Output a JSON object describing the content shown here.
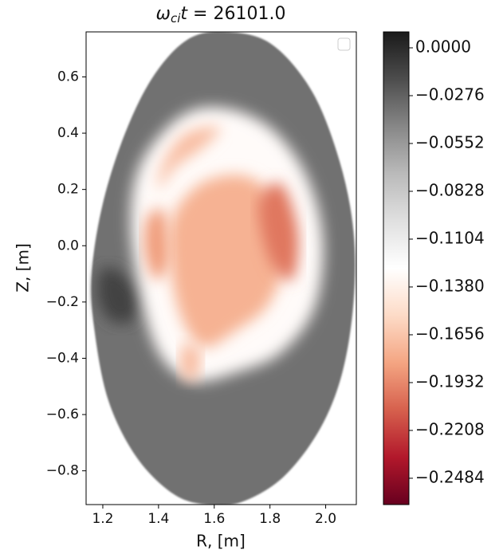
{
  "chart_data": {
    "type": "contour",
    "title": {
      "symbol": "ω",
      "subscript": "ci",
      "variable": "t",
      "rest": " = 26101.0"
    },
    "xlabel": "R, [m]",
    "ylabel": "Z, [m]",
    "xlim": [
      1.14,
      2.11
    ],
    "ylim": [
      -0.92,
      0.76
    ],
    "xticks": [
      1.2,
      1.4,
      1.6,
      1.8,
      {
        "value": 2,
        "label": "2.0"
      }
    ],
    "yticks": [
      {
        "value": -0.8,
        "label": "−0.8"
      },
      {
        "value": -0.6,
        "label": "−0.6"
      },
      {
        "value": -0.4,
        "label": "−0.4"
      },
      {
        "value": -0.2,
        "label": "−0.2"
      },
      {
        "value": 0,
        "label": "0.0"
      },
      0.2,
      0.4,
      0.6
    ],
    "clim": [
      -0.2636,
      0.0092
    ],
    "cticks": [
      {
        "value": 0,
        "label": "0.0000"
      },
      {
        "value": -0.0276,
        "label": "−0.0276"
      },
      {
        "value": -0.0552,
        "label": "−0.0552"
      },
      {
        "value": -0.0828,
        "label": "−0.0828"
      },
      {
        "value": -0.1104,
        "label": "−0.1104"
      },
      {
        "value": -0.138,
        "label": "−0.1380"
      },
      {
        "value": -0.1656,
        "label": "−0.1656"
      },
      {
        "value": -0.1932,
        "label": "−0.1932"
      },
      {
        "value": -0.2208,
        "label": "−0.2208"
      },
      {
        "value": -0.2484,
        "label": "−0.2484"
      }
    ],
    "colormap": [
      "#67001f",
      "#b2182b",
      "#d6604d",
      "#f4a582",
      "#fddbc7",
      "#ffffff",
      "#e0e0e0",
      "#bababa",
      "#878787",
      "#4d4d4d",
      "#1a1a1a"
    ],
    "contours": [
      {
        "value": -0.035,
        "R": [
          1.63,
          1.8,
          1.95,
          2.05,
          2.1,
          2.1,
          2.06,
          1.98,
          1.85,
          1.7,
          1.57,
          1.45,
          1.32,
          1.22,
          1.17,
          1.16,
          1.2,
          1.28,
          1.38,
          1.5
        ],
        "Z": [
          0.76,
          0.72,
          0.55,
          0.3,
          0.05,
          -0.2,
          -0.45,
          -0.65,
          -0.82,
          -0.91,
          -0.92,
          -0.88,
          -0.75,
          -0.55,
          -0.3,
          -0.1,
          0.15,
          0.4,
          0.6,
          0.73
        ]
      },
      {
        "value": -0.012,
        "R": [
          1.2,
          1.27,
          1.33,
          1.3,
          1.22,
          1.18
        ],
        "Z": [
          -0.08,
          -0.1,
          -0.18,
          -0.27,
          -0.26,
          -0.17
        ]
      },
      {
        "value": -0.13,
        "R": [
          1.34,
          1.48,
          1.63,
          1.8,
          1.93,
          1.99,
          1.96,
          1.84,
          1.68,
          1.52,
          1.4,
          1.33,
          1.3
        ],
        "Z": [
          0.3,
          0.46,
          0.49,
          0.42,
          0.25,
          0.02,
          -0.22,
          -0.38,
          -0.45,
          -0.48,
          -0.38,
          -0.15,
          0.1
        ]
      },
      {
        "value": -0.17,
        "R": [
          1.42,
          1.5,
          1.62,
          1.56,
          1.46,
          1.4
        ],
        "Z": [
          0.3,
          0.4,
          0.42,
          0.35,
          0.28,
          0.2
        ]
      },
      {
        "value": -0.185,
        "R": [
          1.36,
          1.42,
          1.44,
          1.39,
          1.35
        ],
        "Z": [
          0.1,
          0.12,
          -0.05,
          -0.12,
          -0.02
        ]
      },
      {
        "value": -0.175,
        "R": [
          1.45,
          1.55,
          1.7,
          1.8,
          1.86,
          1.8,
          1.68,
          1.56,
          1.48,
          1.44
        ],
        "Z": [
          0.1,
          0.22,
          0.25,
          0.18,
          0.0,
          -0.2,
          -0.3,
          -0.36,
          -0.25,
          -0.05
        ]
      },
      {
        "value": -0.2,
        "R": [
          1.76,
          1.84,
          1.9,
          1.88,
          1.8
        ],
        "Z": [
          0.15,
          0.22,
          0.05,
          -0.12,
          -0.05
        ]
      },
      {
        "value": -0.17,
        "R": [
          1.49,
          1.55,
          1.53,
          1.48
        ],
        "Z": [
          -0.35,
          -0.38,
          -0.48,
          -0.45
        ]
      }
    ]
  }
}
